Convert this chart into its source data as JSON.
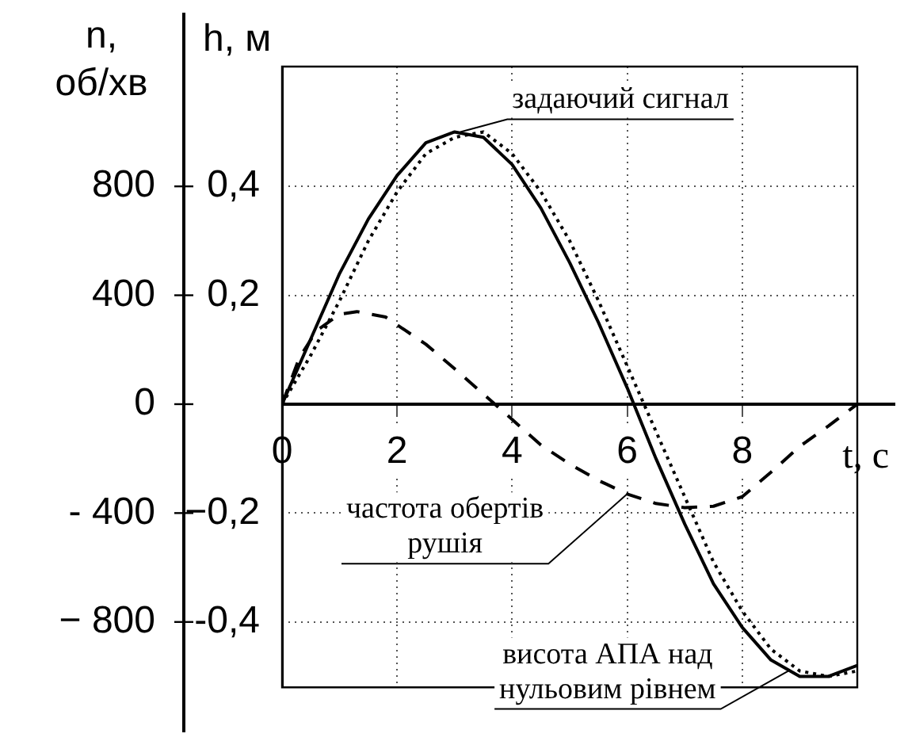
{
  "chart_data": {
    "type": "line",
    "ylabel": "n,\nоб/хв",
    "y2label": "h, м",
    "xlabel": "t, с",
    "x": [
      0,
      0.5,
      1,
      1.5,
      2,
      2.5,
      3,
      3.5,
      4,
      4.5,
      5,
      5.5,
      6,
      6.5,
      7,
      7.5,
      8,
      8.5,
      9,
      9.5,
      10
    ],
    "series": [
      {
        "color": "#000000",
        "line_style": "solid",
        "axis": "y2",
        "values": [
          0,
          0.12,
          0.24,
          0.34,
          0.42,
          0.48,
          0.5,
          0.49,
          0.44,
          0.36,
          0.26,
          0.15,
          0.03,
          -0.1,
          -0.22,
          -0.33,
          -0.41,
          -0.47,
          -0.5,
          -0.5,
          -0.48
        ]
      },
      {
        "color": "#000000",
        "line_style": "dotted",
        "axis": "y2",
        "values": [
          0,
          0.09,
          0.19,
          0.3,
          0.39,
          0.46,
          0.49,
          0.5,
          0.46,
          0.39,
          0.3,
          0.19,
          0.07,
          -0.05,
          -0.17,
          -0.29,
          -0.38,
          -0.45,
          -0.49,
          -0.5,
          -0.49
        ]
      },
      {
        "color": "#000000",
        "line_style": "dashed",
        "x": [
          0,
          0.3,
          0.6,
          1,
          1.3,
          1.8,
          2.5,
          3,
          3.7,
          4.5,
          5,
          5.5,
          6,
          6.5,
          7,
          7.5,
          8,
          8.5,
          9,
          9.5,
          10
        ],
        "values": [
          0,
          170,
          270,
          330,
          340,
          320,
          220,
          130,
          0,
          -150,
          -220,
          -280,
          -330,
          -365,
          -380,
          -375,
          -340,
          -250,
          -155,
          -80,
          0
        ]
      }
    ],
    "xlim": [
      0,
      10
    ],
    "xticks": [
      0,
      2,
      4,
      6,
      8,
      {
        "value": 10,
        "label": null
      }
    ],
    "ylim": [
      -1040,
      1240
    ],
    "yticks": [
      800,
      400,
      0,
      {
        "value": -400,
        "label": "- 400"
      },
      {
        "value": -800,
        "label": "− 800"
      }
    ],
    "y2lim": [
      -0.52,
      0.62
    ],
    "y2ticks": [
      {
        "value": 0.4,
        "label": "0,4"
      },
      {
        "value": 0.2,
        "label": "0,2"
      },
      {
        "value": 0,
        "label": null
      },
      {
        "value": -0.2,
        "label": "−0,2"
      },
      {
        "value": -0.4,
        "label": "-0,4"
      }
    ],
    "grid": true,
    "legend": false,
    "marker": "none",
    "annotations": [
      {
        "text": "задаючий сигнал",
        "x": 3.1,
        "y": 1000
      },
      {
        "text": "частота обертів\nрушія",
        "x": 6,
        "y": -330
      },
      {
        "text": "висота АПА над\nнульовим рівнем",
        "x": 8.8,
        "y": -980
      }
    ]
  }
}
